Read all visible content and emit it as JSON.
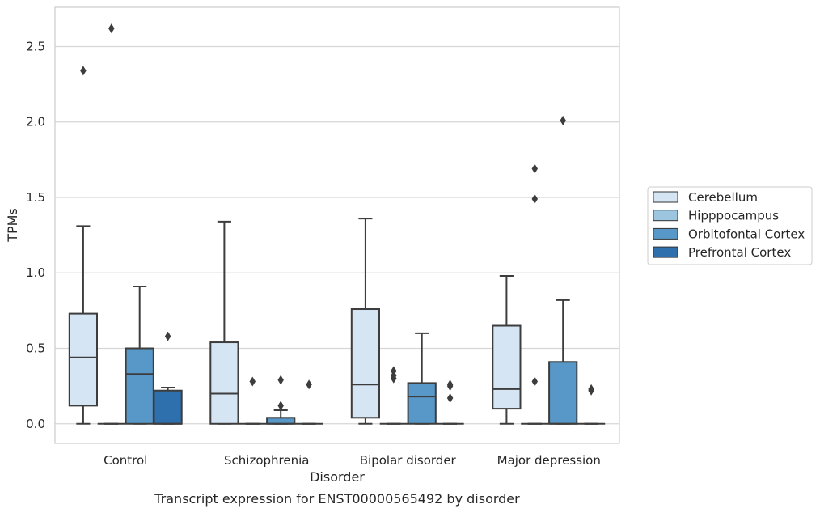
{
  "caption": "Transcript expression for ENST00000565492 by disorder",
  "chart_data": {
    "type": "boxplot",
    "xlabel": "Disorder",
    "ylabel": "TPMs",
    "ylim": [
      -0.13,
      2.76
    ],
    "yticks": [
      0.0,
      0.5,
      1.0,
      1.5,
      2.0,
      2.5
    ],
    "ytick_labels": [
      "0.0",
      "0.5",
      "1.0",
      "1.5",
      "2.0",
      "2.5"
    ],
    "grid": "horizontal",
    "legend_position": "right",
    "categories": [
      "Control",
      "Schizophrenia",
      "Bipolar disorder",
      "Major depression"
    ],
    "series": [
      {
        "name": "Cerebellum",
        "color": "#d6e5f4",
        "boxes": [
          {
            "q1": 0.12,
            "median": 0.44,
            "q3": 0.73,
            "whislo": 0.0,
            "whishi": 1.31,
            "fliers": [
              2.34
            ]
          },
          {
            "q1": 0.0,
            "median": 0.2,
            "q3": 0.54,
            "whislo": 0.0,
            "whishi": 1.34,
            "fliers": []
          },
          {
            "q1": 0.04,
            "median": 0.26,
            "q3": 0.76,
            "whislo": 0.0,
            "whishi": 1.36,
            "fliers": []
          },
          {
            "q1": 0.1,
            "median": 0.23,
            "q3": 0.65,
            "whislo": 0.0,
            "whishi": 0.98,
            "fliers": []
          }
        ]
      },
      {
        "name": "Hipppocampus",
        "color": "#9cc5df",
        "boxes": [
          {
            "q1": 0.0,
            "median": 0.0,
            "q3": 0.0,
            "whislo": 0.0,
            "whishi": 0.0,
            "fliers": [
              2.62
            ]
          },
          {
            "q1": 0.0,
            "median": 0.0,
            "q3": 0.0,
            "whislo": 0.0,
            "whishi": 0.0,
            "fliers": [
              0.28
            ]
          },
          {
            "q1": 0.0,
            "median": 0.0,
            "q3": 0.0,
            "whislo": 0.0,
            "whishi": 0.0,
            "fliers": [
              0.3,
              0.32,
              0.35
            ]
          },
          {
            "q1": 0.0,
            "median": 0.0,
            "q3": 0.0,
            "whislo": 0.0,
            "whishi": 0.0,
            "fliers": [
              1.49,
              1.69,
              0.28
            ]
          }
        ]
      },
      {
        "name": "Orbitofontal Cortex",
        "color": "#5798c8",
        "boxes": [
          {
            "q1": 0.0,
            "median": 0.33,
            "q3": 0.5,
            "whislo": 0.0,
            "whishi": 0.91,
            "fliers": []
          },
          {
            "q1": 0.0,
            "median": 0.0,
            "q3": 0.04,
            "whislo": 0.0,
            "whishi": 0.09,
            "fliers": [
              0.29,
              0.12
            ]
          },
          {
            "q1": 0.0,
            "median": 0.18,
            "q3": 0.27,
            "whislo": 0.0,
            "whishi": 0.6,
            "fliers": []
          },
          {
            "q1": 0.0,
            "median": 0.0,
            "q3": 0.41,
            "whislo": 0.0,
            "whishi": 0.82,
            "fliers": [
              2.01
            ]
          }
        ]
      },
      {
        "name": "Prefrontal Cortex",
        "color": "#2e6fae",
        "boxes": [
          {
            "q1": 0.0,
            "median": 0.0,
            "q3": 0.22,
            "whislo": 0.0,
            "whishi": 0.24,
            "fliers": [
              0.58
            ]
          },
          {
            "q1": 0.0,
            "median": 0.0,
            "q3": 0.0,
            "whislo": 0.0,
            "whishi": 0.0,
            "fliers": [
              0.26
            ]
          },
          {
            "q1": 0.0,
            "median": 0.0,
            "q3": 0.0,
            "whislo": 0.0,
            "whishi": 0.0,
            "fliers": [
              0.25,
              0.26,
              0.17
            ]
          },
          {
            "q1": 0.0,
            "median": 0.0,
            "q3": 0.0,
            "whislo": 0.0,
            "whishi": 0.0,
            "fliers": [
              0.22,
              0.23
            ]
          }
        ]
      }
    ]
  }
}
